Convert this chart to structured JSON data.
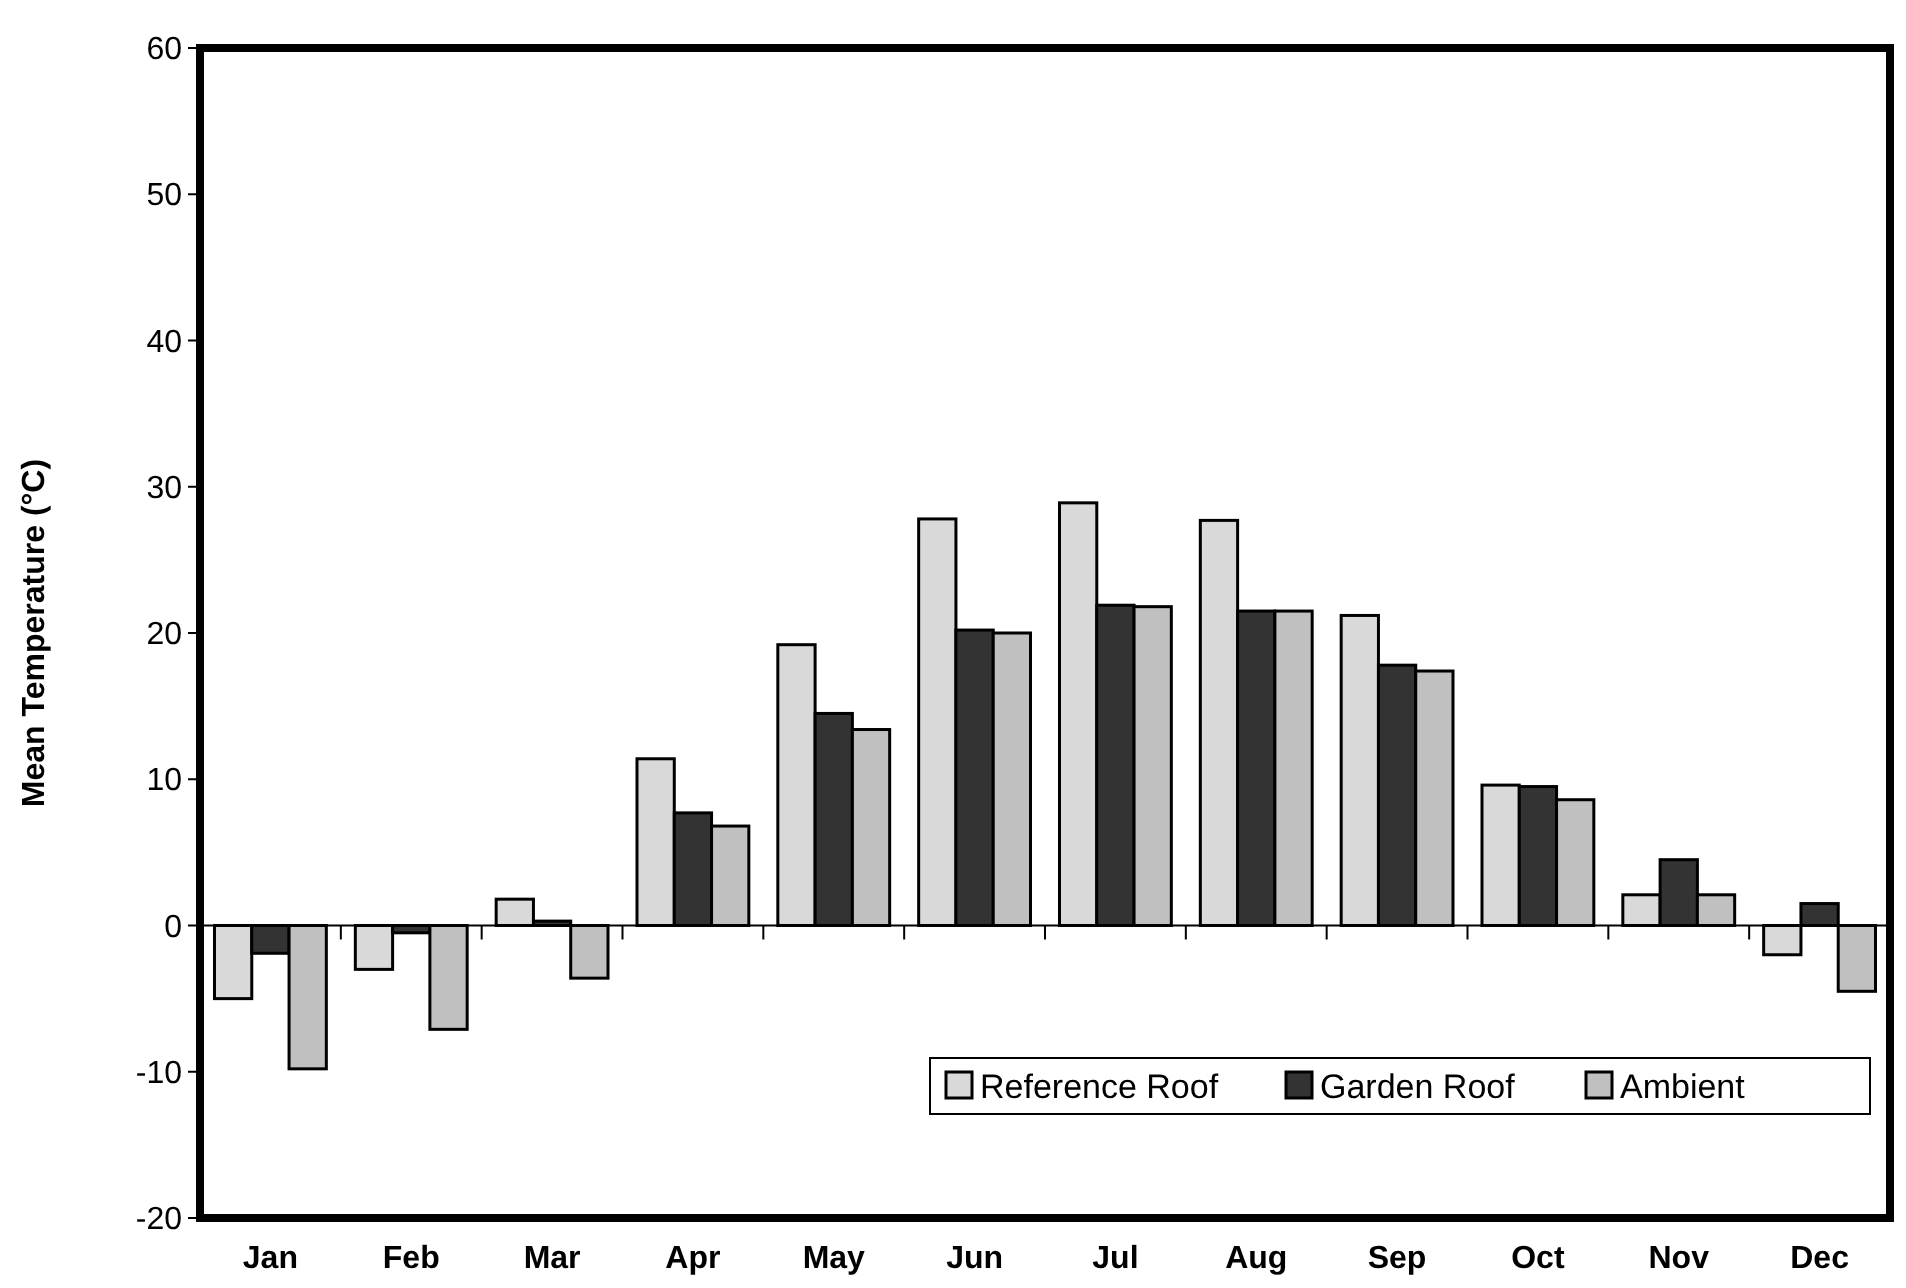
{
  "chart_data": {
    "type": "bar",
    "ylabel": "Mean Temperature (°C)",
    "categories": [
      "Jan",
      "Feb",
      "Mar",
      "Apr",
      "May",
      "Jun",
      "Jul",
      "Aug",
      "Sep",
      "Oct",
      "Nov",
      "Dec"
    ],
    "series": [
      {
        "name": "Reference Roof",
        "color": "#d9d9d9",
        "values": [
          -5.0,
          -3.0,
          1.8,
          11.4,
          19.2,
          27.8,
          28.9,
          27.7,
          21.2,
          9.6,
          2.1,
          -2.0
        ]
      },
      {
        "name": "Garden Roof",
        "color": "#333333",
        "values": [
          -1.9,
          -0.5,
          0.3,
          7.7,
          14.5,
          20.2,
          21.9,
          21.5,
          17.8,
          9.5,
          4.5,
          1.5
        ]
      },
      {
        "name": "Ambient",
        "color": "#c0c0c0",
        "values": [
          -9.8,
          -7.1,
          -3.6,
          6.8,
          13.4,
          20.0,
          21.8,
          21.5,
          17.4,
          8.6,
          2.1,
          -4.5
        ]
      }
    ],
    "ylim": [
      -20,
      60
    ],
    "yticks": [
      -20,
      -10,
      0,
      10,
      20,
      30,
      40,
      50,
      60
    ],
    "legend": "bottom right"
  }
}
